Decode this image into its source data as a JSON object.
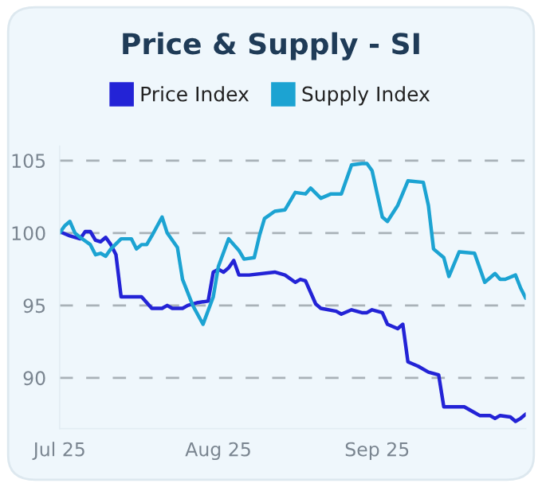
{
  "chart_data": {
    "type": "line",
    "title": "Price & Supply - SI",
    "x": [
      "2025-07-01",
      "2025-07-02",
      "2025-07-03",
      "2025-07-04",
      "2025-07-05",
      "2025-07-07",
      "2025-07-08",
      "2025-07-09",
      "2025-07-10",
      "2025-07-11",
      "2025-07-13",
      "2025-07-15",
      "2025-07-16",
      "2025-07-17",
      "2025-07-18",
      "2025-07-19",
      "2025-07-21",
      "2025-07-22",
      "2025-07-24",
      "2025-07-25",
      "2025-07-27",
      "2025-07-29",
      "2025-07-31",
      "2025-08-01",
      "2025-08-03",
      "2025-08-05",
      "2025-08-06",
      "2025-08-08",
      "2025-08-09",
      "2025-08-10",
      "2025-08-12",
      "2025-08-14",
      "2025-08-16",
      "2025-08-18",
      "2025-08-19",
      "2025-08-21",
      "2025-08-23",
      "2025-08-25",
      "2025-08-27",
      "2025-08-29",
      "2025-08-30",
      "2025-08-31",
      "2025-09-01",
      "2025-09-02",
      "2025-09-03",
      "2025-09-05",
      "2025-09-07",
      "2025-09-10",
      "2025-09-11",
      "2025-09-12",
      "2025-09-14",
      "2025-09-15",
      "2025-09-17",
      "2025-09-20",
      "2025-09-22",
      "2025-09-24",
      "2025-09-25",
      "2025-09-26",
      "2025-09-28",
      "2025-09-29",
      "2025-09-30"
    ],
    "series": [
      {
        "name": "Price Index",
        "color": "#2323d6",
        "x": [
          "2025-07-01",
          "2025-07-03",
          "2025-07-05",
          "2025-07-06",
          "2025-07-07",
          "2025-07-08",
          "2025-07-09",
          "2025-07-10",
          "2025-07-11",
          "2025-07-12",
          "2025-07-13",
          "2025-07-15",
          "2025-07-17",
          "2025-07-18",
          "2025-07-19",
          "2025-07-21",
          "2025-07-22",
          "2025-07-23",
          "2025-07-25",
          "2025-07-26",
          "2025-07-28",
          "2025-07-30",
          "2025-07-31",
          "2025-08-01",
          "2025-08-02",
          "2025-08-03",
          "2025-08-04",
          "2025-08-05",
          "2025-08-07",
          "2025-08-12",
          "2025-08-14",
          "2025-08-16",
          "2025-08-17",
          "2025-08-18",
          "2025-08-20",
          "2025-08-21",
          "2025-08-24",
          "2025-08-25",
          "2025-08-27",
          "2025-08-29",
          "2025-08-30",
          "2025-08-31",
          "2025-09-02",
          "2025-09-03",
          "2025-09-05",
          "2025-09-06",
          "2025-09-07",
          "2025-09-09",
          "2025-09-11",
          "2025-09-13",
          "2025-09-14",
          "2025-09-16",
          "2025-09-18",
          "2025-09-20",
          "2025-09-21",
          "2025-09-23",
          "2025-09-24",
          "2025-09-25",
          "2025-09-27",
          "2025-09-28",
          "2025-09-29",
          "2025-09-30"
        ],
        "values": [
          100.1,
          99.8,
          99.6,
          100.1,
          100.1,
          99.5,
          99.4,
          99.7,
          99.2,
          98.5,
          95.6,
          95.6,
          95.6,
          95.2,
          94.8,
          94.8,
          95.0,
          94.8,
          94.8,
          95.0,
          95.2,
          95.3,
          97.3,
          97.5,
          97.3,
          97.6,
          98.1,
          97.1,
          97.1,
          97.3,
          97.1,
          96.6,
          96.8,
          96.7,
          95.1,
          94.8,
          94.6,
          94.4,
          94.7,
          94.5,
          94.5,
          94.7,
          94.5,
          93.7,
          93.4,
          93.7,
          91.1,
          90.8,
          90.4,
          90.2,
          88.0,
          88.0,
          88.0,
          87.6,
          87.4,
          87.4,
          87.2,
          87.4,
          87.3,
          87.0,
          87.2,
          87.5
        ]
      },
      {
        "name": "Supply Index",
        "color": "#1ca3d2",
        "values": [
          100.0,
          100.5,
          100.8,
          100.0,
          99.7,
          99.2,
          98.5,
          98.6,
          98.4,
          98.9,
          99.6,
          99.6,
          98.9,
          99.2,
          99.2,
          99.8,
          101.1,
          100.0,
          99.0,
          96.8,
          95.0,
          93.7,
          95.6,
          97.7,
          99.6,
          98.8,
          98.2,
          98.3,
          99.8,
          101.0,
          101.5,
          101.6,
          102.8,
          102.7,
          103.1,
          102.4,
          102.7,
          102.7,
          104.7,
          104.8,
          104.8,
          104.3,
          102.7,
          101.1,
          100.8,
          101.9,
          103.6,
          103.5,
          101.9,
          98.9,
          98.3,
          97.0,
          98.7,
          98.6,
          96.6,
          97.2,
          96.8,
          96.8,
          97.1,
          96.2,
          95.5
        ]
      }
    ],
    "xlim": [
      "2025-07-01",
      "2025-09-30"
    ],
    "xticks": [
      {
        "value": "2025-07-01",
        "label": "Jul 25"
      },
      {
        "value": "2025-08-01",
        "label": "Aug 25"
      },
      {
        "value": "2025-09-01",
        "label": "Sep 25"
      }
    ],
    "ylim": [
      86.5,
      106
    ],
    "yticks": [
      90,
      95,
      100,
      105
    ],
    "grid": "y",
    "legend": "top",
    "marker": "none",
    "line_style": "solid"
  }
}
